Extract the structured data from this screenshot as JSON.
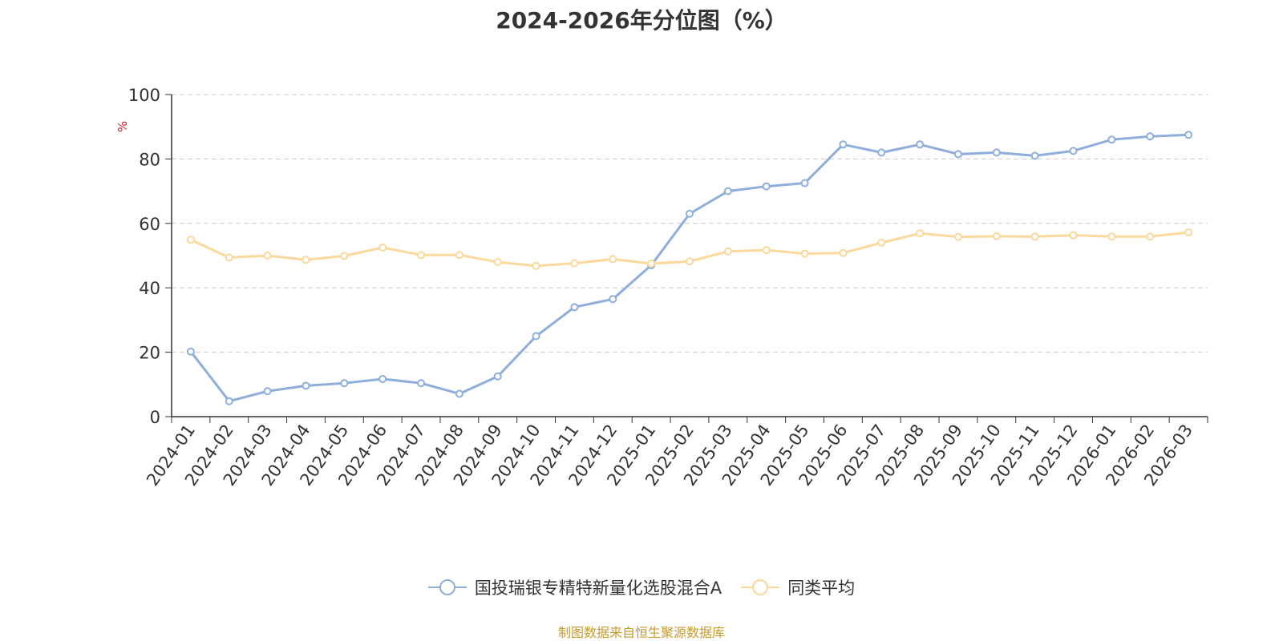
{
  "chart_data": {
    "type": "line",
    "title": "2024-2026年分位图（%）",
    "ylabel": "%",
    "ylim": [
      0,
      100
    ],
    "yticks": [
      0,
      20,
      40,
      60,
      80,
      100
    ],
    "grid": true,
    "legend_position": "bottom",
    "categories": [
      "2024-01",
      "2024-02",
      "2024-03",
      "2024-04",
      "2024-05",
      "2024-06",
      "2024-07",
      "2024-08",
      "2024-09",
      "2024-10",
      "2024-11",
      "2024-12",
      "2025-01",
      "2025-02",
      "2025-03",
      "2025-04",
      "2025-05",
      "2025-06",
      "2025-07",
      "2025-08",
      "2025-09",
      "2025-10",
      "2025-11",
      "2025-12",
      "2026-01",
      "2026-02",
      "2026-03"
    ],
    "series": [
      {
        "name": "国投瑞银专精特新量化选股混合A",
        "color": "#8eaedb",
        "values": [
          20.2,
          4.8,
          7.9,
          9.6,
          10.4,
          11.7,
          10.4,
          7.1,
          12.5,
          25.0,
          34.0,
          36.5,
          47.0,
          63.0,
          70.0,
          71.5,
          72.5,
          84.5,
          82.0,
          84.5,
          81.5,
          82.0,
          81.0,
          82.5,
          86.0,
          87.0,
          87.5
        ]
      },
      {
        "name": "同类平均",
        "color": "#fbd89b",
        "values": [
          54.9,
          49.4,
          50.0,
          48.7,
          49.9,
          52.5,
          50.2,
          50.2,
          48.0,
          46.8,
          47.6,
          48.9,
          47.5,
          48.2,
          51.3,
          51.7,
          50.6,
          50.8,
          54.0,
          56.9,
          55.8,
          56.0,
          55.9,
          56.3,
          55.9,
          55.9,
          57.2
        ]
      }
    ]
  },
  "source_note": "制图数据来自恒生聚源数据库"
}
